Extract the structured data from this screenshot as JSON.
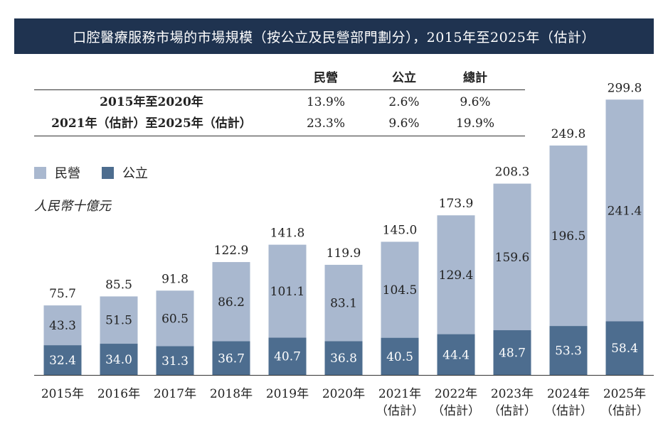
{
  "title": "口腔醫療服務市場的市場規模（按公立及民營部門劃分），2015年至2025年（估計）",
  "cagr_table": {
    "headers": [
      "民營",
      "公立",
      "總計"
    ],
    "rows": [
      {
        "period": "2015年至2020年",
        "values": [
          "13.9%",
          "2.6%",
          "9.6%"
        ]
      },
      {
        "period": "2021年（估計）至2025年（估計）",
        "values": [
          "23.3%",
          "9.6%",
          "19.9%"
        ]
      }
    ]
  },
  "colors": {
    "private": "#a9b8cf",
    "public": "#4d6d8f",
    "title_bg": "#1f3350"
  },
  "chart_data": {
    "type": "bar",
    "stacked": true,
    "unit_label": "人民幣十億元",
    "categories": [
      "2015年",
      "2016年",
      "2017年",
      "2018年",
      "2019年",
      "2020年",
      "2021年\n（估計）",
      "2022年\n（估計）",
      "2023年\n（估計）",
      "2024年\n（估計）",
      "2025年\n（估計）"
    ],
    "series": [
      {
        "name": "公立",
        "values": [
          32.4,
          34.0,
          31.3,
          36.7,
          40.7,
          36.8,
          40.5,
          44.4,
          48.7,
          53.3,
          58.4
        ]
      },
      {
        "name": "民營",
        "values": [
          43.3,
          51.5,
          60.5,
          86.2,
          101.1,
          83.1,
          104.5,
          129.4,
          159.6,
          196.5,
          241.4
        ]
      }
    ],
    "totals": [
      "75.7",
      "85.5",
      "91.8",
      "122.9",
      "141.8",
      "119.9",
      "145.0",
      "173.9",
      "208.3",
      "249.8",
      "299.8"
    ],
    "public_labels": [
      "32.4",
      "34.0",
      "31.3",
      "36.7",
      "40.7",
      "36.8",
      "40.5",
      "44.4",
      "48.7",
      "53.3",
      "58.4"
    ],
    "private_labels": [
      "43.3",
      "51.5",
      "60.5",
      "86.2",
      "101.1",
      "83.1",
      "104.5",
      "129.4",
      "159.6",
      "196.5",
      "241.4"
    ],
    "legend": [
      "民營",
      "公立"
    ],
    "legend_position": "top-left",
    "ylim": [
      0,
      300
    ],
    "grid": false
  }
}
